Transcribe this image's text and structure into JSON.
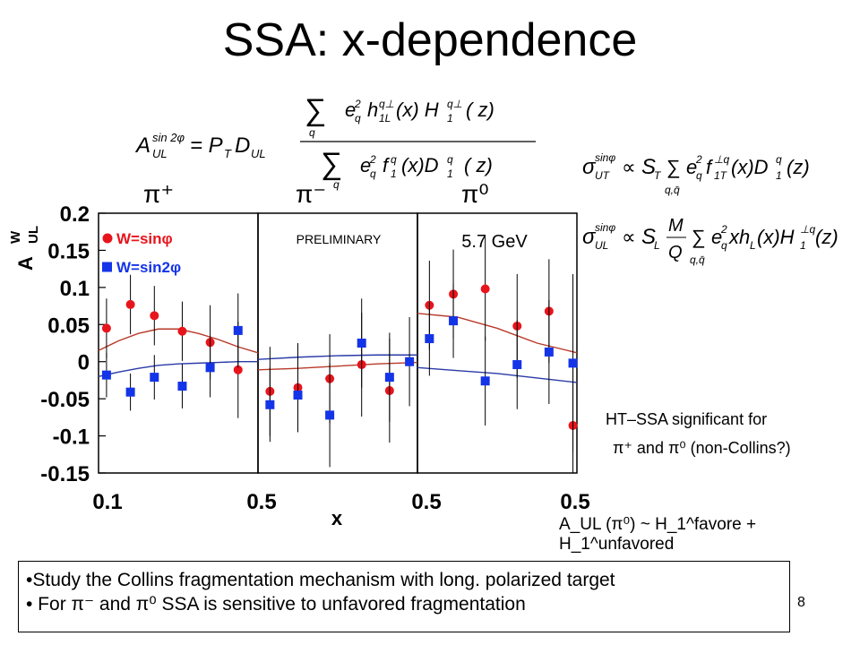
{
  "title": "SSA: x-dependence",
  "formulas": {
    "asymmetry_lhs": "A_UL^{sin 2φ} = P_T D_UL",
    "asymmetry_num": "Σ_q e_q² h_1L^{⊥q}(x) H_1^{⊥q}(z)",
    "asymmetry_den": "Σ_q e_q² f_1^q(x) D_1^q(z)",
    "sigma_ut": "σ_UT^{sinφ} ∝ S_T Σ_{q,q̄} e_q² f_1T^{⊥q}(x) D_1^q(z)",
    "sigma_ul": "σ_UL^{sinφ} ∝ S_L (M/Q) Σ_{q,q̄} e_q² x h_L(x) H_1^{⊥q}(z)"
  },
  "chart_data": {
    "type": "scatter",
    "ylabel": "A_UL^W",
    "xlabel": "x",
    "ylim": [
      -0.15,
      0.2
    ],
    "yticks": [
      "0.2",
      "0.15",
      "0.1",
      "0.05",
      "0",
      "-0.05",
      "-0.1",
      "-0.15"
    ],
    "xticks": [
      "0.1",
      "0.5",
      "0.5",
      "0.5"
    ],
    "legend": [
      {
        "name": "W=sinφ",
        "color": "#e8141c",
        "marker": "circle"
      },
      {
        "name": "W=sin2φ",
        "color": "#1434e8",
        "marker": "square"
      }
    ],
    "legend_position": "top-left",
    "panel_labels": [
      "π⁺",
      "π⁻",
      "π⁰"
    ],
    "annotations": [
      "PRELIMINARY",
      "5.7 GeV"
    ],
    "panels": [
      {
        "name": "π+",
        "xlim": [
          0.1,
          0.5
        ],
        "series": [
          {
            "name": "W=sinφ",
            "x": [
              0.12,
              0.18,
              0.24,
              0.31,
              0.38,
              0.45
            ],
            "y": [
              0.045,
              0.077,
              0.062,
              0.041,
              0.026,
              -0.011
            ],
            "err": [
              0.04,
              0.04,
              0.04,
              0.04,
              0.05,
              0.065
            ]
          },
          {
            "name": "W=sin2φ",
            "x": [
              0.12,
              0.18,
              0.24,
              0.31,
              0.38,
              0.45
            ],
            "y": [
              -0.018,
              -0.041,
              -0.021,
              -0.033,
              -0.008,
              0.042
            ],
            "err": [
              0.03,
              0.025,
              0.03,
              0.03,
              0.04,
              0.05
            ]
          }
        ],
        "curves": [
          {
            "name": "W=sinφ model",
            "x": [
              0.1,
              0.15,
              0.2,
              0.25,
              0.3,
              0.35,
              0.4,
              0.45,
              0.5
            ],
            "y": [
              0.015,
              0.028,
              0.038,
              0.044,
              0.044,
              0.038,
              0.03,
              0.02,
              0.012
            ]
          },
          {
            "name": "W=sin2φ model",
            "x": [
              0.1,
              0.15,
              0.2,
              0.25,
              0.3,
              0.35,
              0.4,
              0.45,
              0.5
            ],
            "y": [
              -0.02,
              -0.014,
              -0.009,
              -0.005,
              -0.003,
              -0.002,
              -0.001,
              0.0,
              0.0
            ]
          }
        ]
      },
      {
        "name": "π−",
        "xlim": [
          0.1,
          0.5
        ],
        "series": [
          {
            "name": "W=sinφ",
            "x": [
              0.13,
              0.2,
              0.28,
              0.36,
              0.43
            ],
            "y": [
              -0.04,
              -0.035,
              -0.023,
              -0.004,
              -0.039
            ],
            "err": [
              0.06,
              0.06,
              0.06,
              0.07,
              0.07
            ]
          },
          {
            "name": "W=sin2φ",
            "x": [
              0.13,
              0.2,
              0.28,
              0.36,
              0.43,
              0.48
            ],
            "y": [
              -0.058,
              -0.045,
              -0.072,
              0.025,
              -0.021,
              0.0
            ],
            "err": [
              0.05,
              0.05,
              0.07,
              0.06,
              0.06,
              0.06
            ]
          }
        ],
        "curves": [
          {
            "name": "W=sinφ model",
            "x": [
              0.1,
              0.2,
              0.3,
              0.4,
              0.5
            ],
            "y": [
              -0.011,
              -0.009,
              -0.006,
              -0.003,
              -0.001
            ]
          },
          {
            "name": "W=sin2φ model",
            "x": [
              0.1,
              0.2,
              0.3,
              0.4,
              0.5
            ],
            "y": [
              0.003,
              0.006,
              0.008,
              0.009,
              0.009
            ]
          }
        ]
      },
      {
        "name": "π0",
        "xlim": [
          0.1,
          0.5
        ],
        "series": [
          {
            "name": "W=sinφ",
            "x": [
              0.13,
              0.19,
              0.27,
              0.35,
              0.43,
              0.49
            ],
            "y": [
              0.076,
              0.091,
              0.098,
              0.048,
              0.068,
              -0.086
            ],
            "err": [
              0.06,
              0.06,
              0.07,
              0.07,
              0.07,
              0.09
            ]
          },
          {
            "name": "W=sin2φ",
            "x": [
              0.13,
              0.19,
              0.27,
              0.35,
              0.43,
              0.49
            ],
            "y": [
              0.031,
              0.055,
              -0.026,
              -0.004,
              0.013,
              -0.002
            ],
            "err": [
              0.05,
              0.05,
              0.06,
              0.06,
              0.07,
              0.12
            ]
          }
        ],
        "curves": [
          {
            "name": "W=sinφ model",
            "x": [
              0.1,
              0.2,
              0.3,
              0.4,
              0.5
            ],
            "y": [
              0.065,
              0.06,
              0.045,
              0.025,
              0.012
            ]
          },
          {
            "name": "W=sin2φ model",
            "x": [
              0.1,
              0.2,
              0.3,
              0.4,
              0.5
            ],
            "y": [
              -0.008,
              -0.012,
              -0.016,
              -0.022,
              -0.028
            ]
          }
        ]
      }
    ]
  },
  "notes": {
    "ht_line1": "HT–SSA significant for",
    "ht_line2": "π⁺ and π⁰ (non-Collins?)",
    "aul_relation": "A_UL (π⁰) ~ H_1^favore + H_1^unfavored"
  },
  "bullets": [
    "•Study the Collins fragmentation mechanism with long. polarized target",
    "• For π⁻ and π⁰ SSA is sensitive to unfavored fragmentation"
  ],
  "page_number": "8",
  "colors": {
    "sinphi": "#e8141c",
    "sin2phi": "#1434e8",
    "curve_red": "#b83a2a",
    "curve_blue": "#2a3aa8"
  }
}
